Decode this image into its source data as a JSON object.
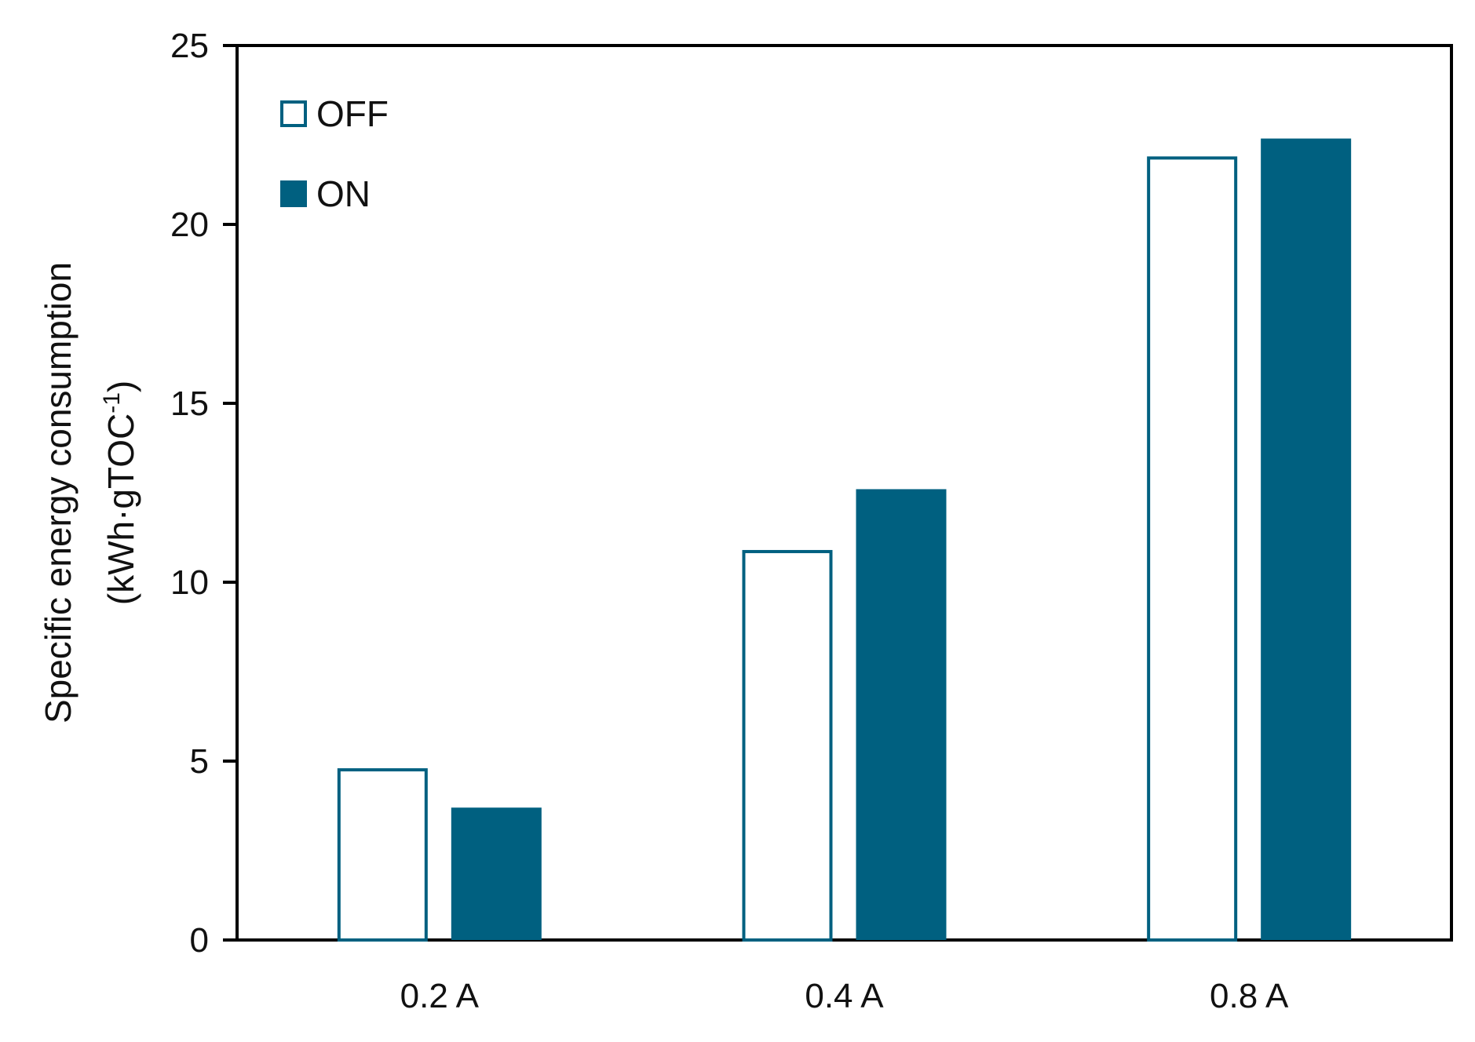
{
  "chart_data": {
    "type": "bar",
    "categories": [
      "0.2 A",
      "0.4 A",
      "0.8 A"
    ],
    "series": [
      {
        "name": "OFF",
        "values": [
          4.8,
          10.9,
          21.9
        ],
        "fill": "#ffffff",
        "stroke": "#006080"
      },
      {
        "name": "ON",
        "values": [
          3.7,
          12.6,
          22.4
        ],
        "fill": "#006080",
        "stroke": "#006080"
      }
    ],
    "title": "",
    "xlabel": "",
    "ylabel_line1": "Specific energy consumption",
    "ylabel_line2_main": "(kWh·gTOC",
    "ylabel_line2_sup": "-1",
    "ylabel_line2_close": ")",
    "ylim": [
      0,
      25
    ],
    "yticks": [
      0,
      5,
      10,
      15,
      20,
      25
    ],
    "grid": false,
    "legend_position": "top-left",
    "colors": {
      "accent": "#006080",
      "axis": "#000000"
    }
  }
}
